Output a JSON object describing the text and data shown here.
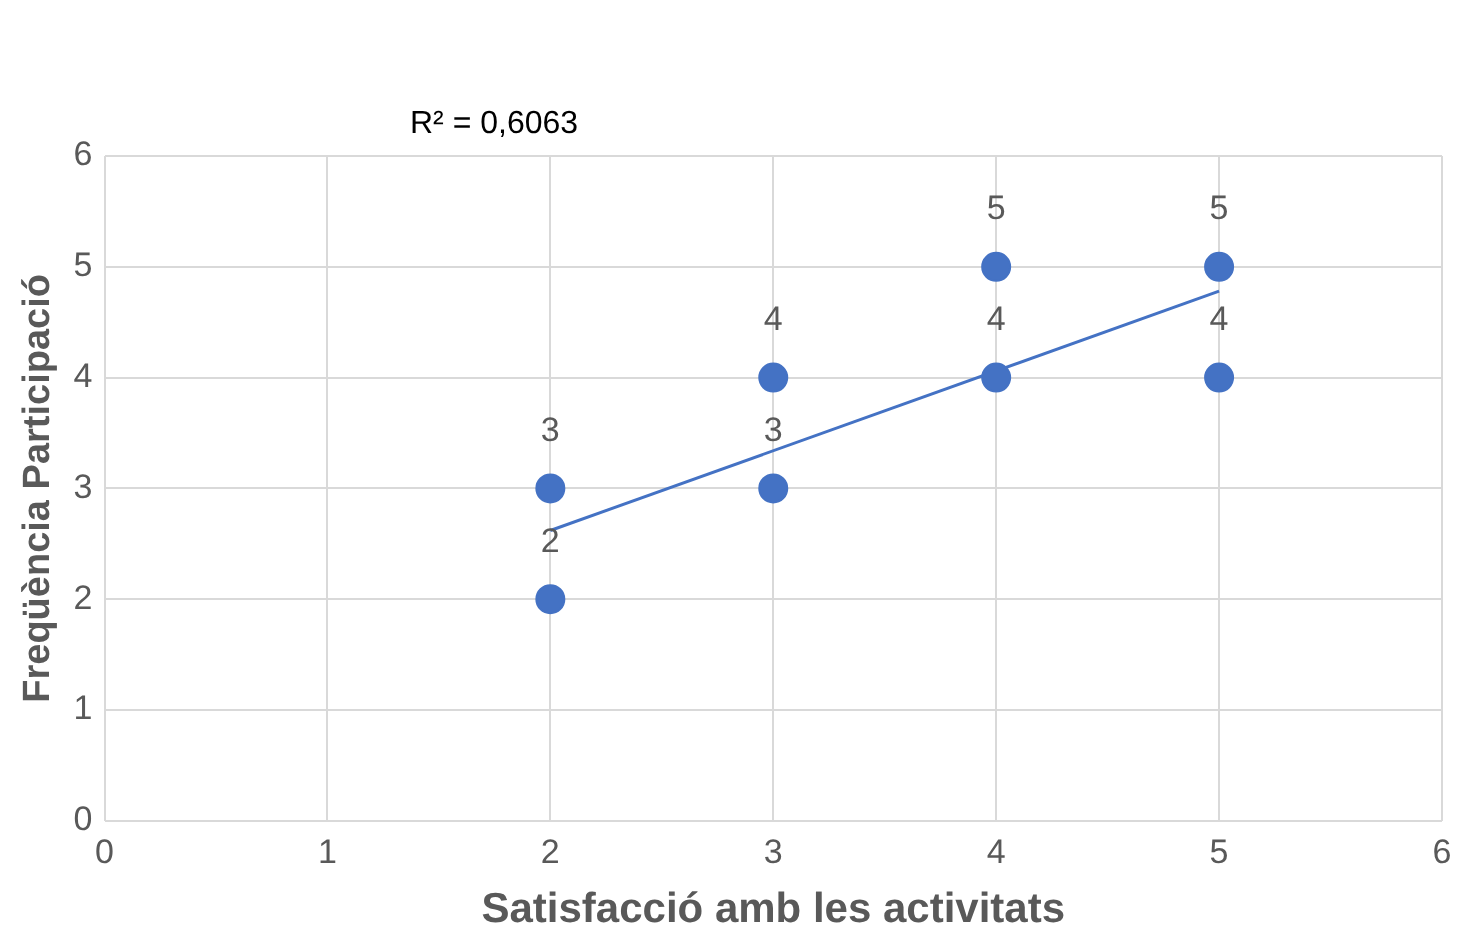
{
  "chart_data": {
    "type": "scatter",
    "xlabel": "Satisfacció amb les activitats",
    "ylabel": "Freqüència Participació",
    "annotations": [
      "R² = 0,6063"
    ],
    "x": [
      2,
      2,
      3,
      3,
      4,
      4,
      5,
      5
    ],
    "series": [
      {
        "color": "#4472c4",
        "marker": "circle",
        "values": [
          3,
          2,
          4,
          3,
          5,
          4,
          5,
          4
        ],
        "value_labels": [
          "3",
          "2",
          "4",
          "3",
          "5",
          "4",
          "5",
          "4"
        ]
      },
      {
        "type": "line",
        "color": "#4472c4",
        "marker": "none",
        "x": [
          2,
          5
        ],
        "values": [
          2.62,
          4.78
        ]
      }
    ],
    "xlim": [
      0,
      6
    ],
    "xticks": [
      0,
      1,
      2,
      3,
      4,
      5,
      6
    ],
    "ylim": [
      0,
      6
    ],
    "yticks": [
      0,
      1,
      2,
      3,
      4,
      5,
      6
    ],
    "grid": true,
    "legend": false
  }
}
